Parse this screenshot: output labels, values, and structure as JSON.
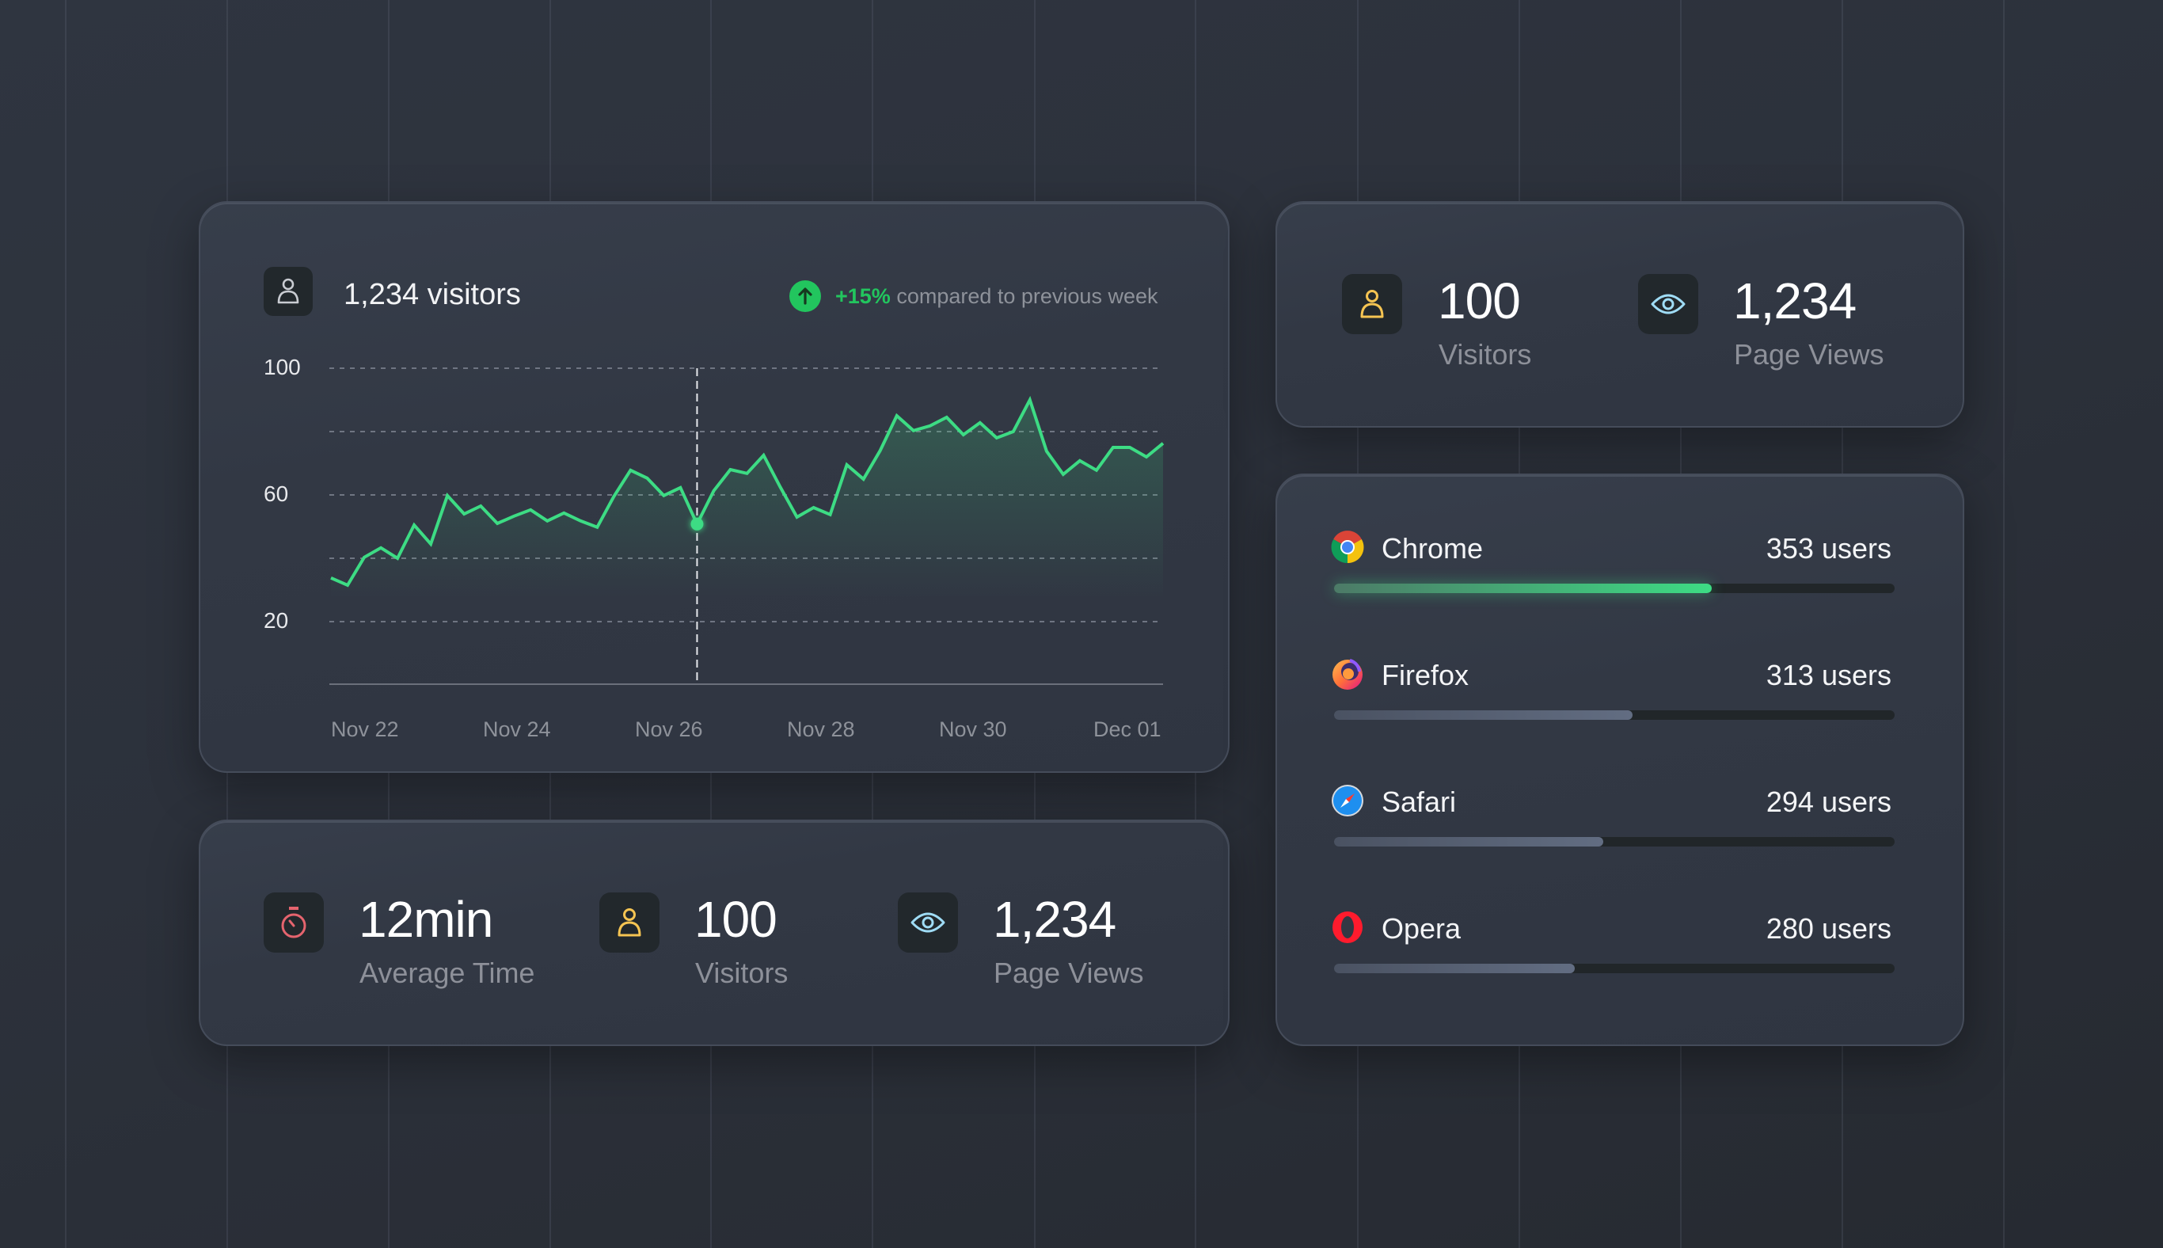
{
  "visitors_card": {
    "title": "1,234 visitors",
    "trend_pct": "+15%",
    "trend_text": " compared to previous week",
    "icon": "user-icon",
    "trend_icon": "arrow-up-circle-icon",
    "accent_color": "#3ddc84",
    "trend_color": "#22c55e",
    "y_ticks": [
      "100",
      "60",
      "20"
    ],
    "x_ticks": [
      "Nov 22",
      "Nov 24",
      "Nov 26",
      "Nov 28",
      "Nov 30",
      "Dec 01"
    ]
  },
  "chart_data": {
    "type": "area",
    "title": "1,234 visitors",
    "xlabel": "",
    "ylabel": "",
    "ylim": [
      0,
      100
    ],
    "y_ticks": [
      20,
      60,
      100
    ],
    "gridlines_at": [
      20,
      40,
      60,
      80,
      100
    ],
    "grid": true,
    "x_tick_labels": [
      "Nov 22",
      "Nov 24",
      "Nov 26",
      "Nov 28",
      "Nov 30",
      "Dec 01"
    ],
    "highlight_index": 22,
    "series": [
      {
        "name": "visitors",
        "color": "#3ddc84",
        "values": [
          33.8,
          31.5,
          40.3,
          43.3,
          40.0,
          50.5,
          44.5,
          59.8,
          54.0,
          56.5,
          51.0,
          53.3,
          55.3,
          51.8,
          54.3,
          51.8,
          49.8,
          59.5,
          67.8,
          65.3,
          59.8,
          62.3,
          50.8,
          61.3,
          68.0,
          66.8,
          72.5,
          62.5,
          53.0,
          56.0,
          53.8,
          69.5,
          65.0,
          74.0,
          85.0,
          80.3,
          81.8,
          84.5,
          79.0,
          82.8,
          78.0,
          80.0,
          90.0,
          73.8,
          66.5,
          70.8,
          67.8,
          75.0,
          75.0,
          72.0,
          76.3
        ]
      }
    ]
  },
  "summary_card": {
    "items": [
      {
        "value": "12min",
        "label": "Average Time",
        "icon": "stopwatch-icon",
        "color": "#e5646e"
      },
      {
        "value": "100",
        "label": "Visitors",
        "icon": "user-icon",
        "color": "#f5c452"
      },
      {
        "value": "1,234",
        "label": "Page Views",
        "icon": "eye-icon",
        "color": "#9fdcf5"
      }
    ]
  },
  "top_right_card": {
    "items": [
      {
        "value": "100",
        "label": "Visitors",
        "icon": "user-icon",
        "color": "#f5c452"
      },
      {
        "value": "1,234",
        "label": "Page Views",
        "icon": "eye-icon",
        "color": "#9fdcf5"
      }
    ]
  },
  "browsers_card": {
    "items": [
      {
        "name": "Chrome",
        "value": "353 users",
        "icon": "chrome-icon",
        "fill_pct": 67.4,
        "highlight": true
      },
      {
        "name": "Firefox",
        "value": "313 users",
        "icon": "firefox-icon",
        "fill_pct": 53.2,
        "highlight": false
      },
      {
        "name": "Safari",
        "value": "294 users",
        "icon": "safari-icon",
        "fill_pct": 48.0,
        "highlight": false
      },
      {
        "name": "Opera",
        "value": "280 users",
        "icon": "opera-icon",
        "fill_pct": 43.0,
        "highlight": false
      }
    ]
  }
}
